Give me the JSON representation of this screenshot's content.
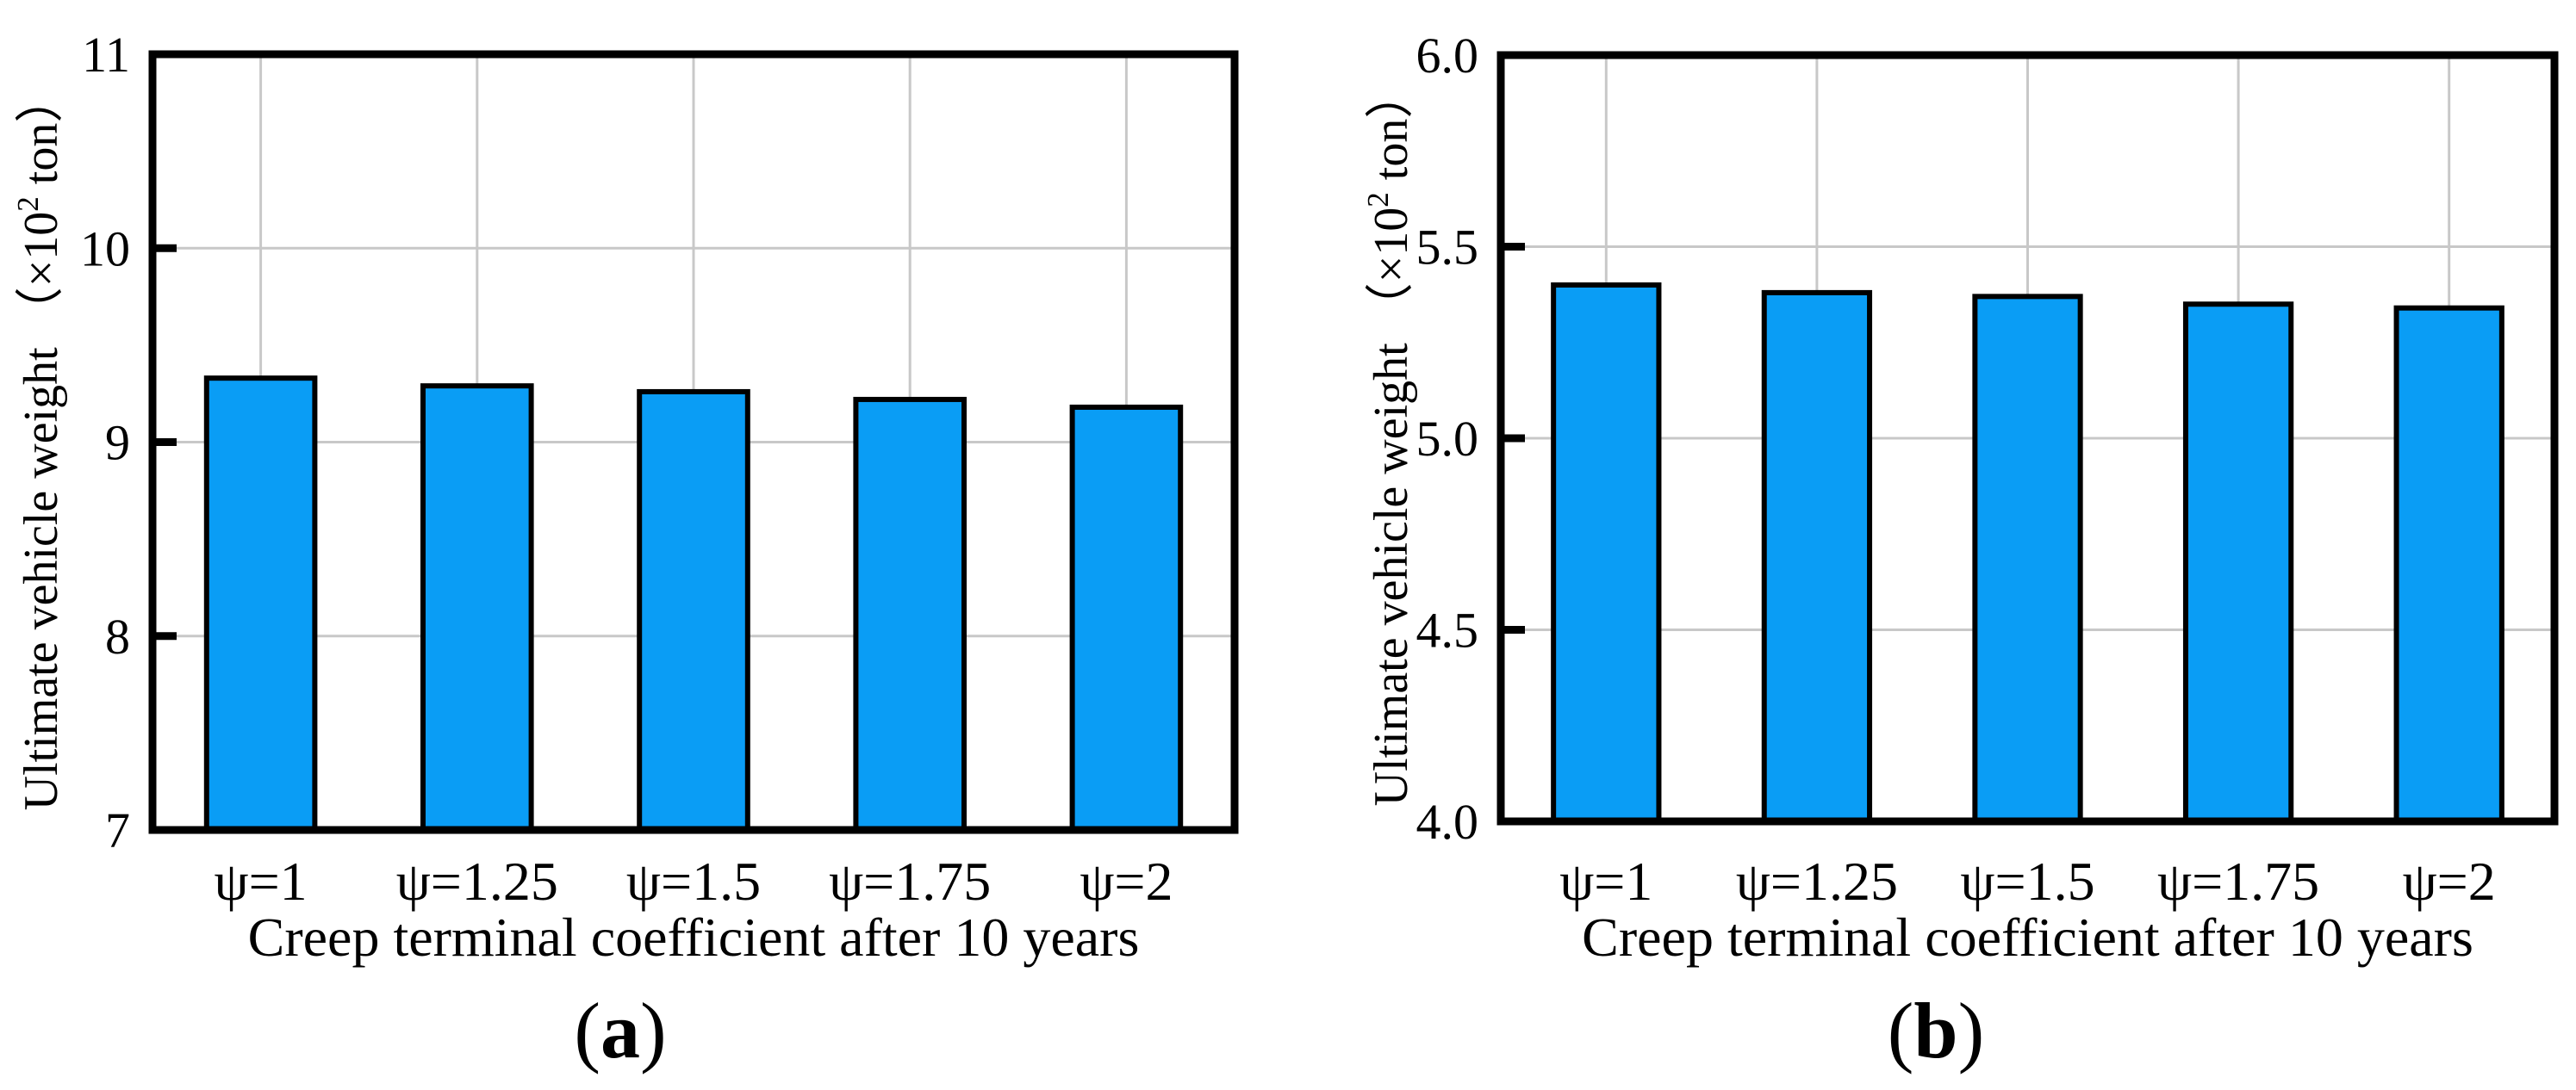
{
  "figure": {
    "kind": "two-panel scientific bar chart figure",
    "background": "#ffffff",
    "panel_labels": [
      "(a)",
      "(b)"
    ]
  },
  "chart_data": [
    {
      "type": "bar",
      "panel_label": "(a)",
      "title": "",
      "categories": [
        "ψ=1",
        "ψ=1.25",
        "ψ=1.5",
        "ψ=1.75",
        "ψ=2"
      ],
      "values": [
        9.33,
        9.29,
        9.26,
        9.22,
        9.18
      ],
      "xlabel": "Creep terminal coefficient after 10 years",
      "ylabel": "Ultimate vehicle weight （×10² ton）",
      "ylim": [
        7,
        11
      ],
      "yticks": [
        7,
        8,
        9,
        10,
        11
      ],
      "ytick_labels": [
        "7",
        "8",
        "9",
        "10",
        "11"
      ],
      "grid": true,
      "legend_position": "none",
      "bar_color": "#0A9DF5",
      "bar_edge_color": "#000000",
      "grid_color": "#C8C8C8",
      "axis_color": "#000000"
    },
    {
      "type": "bar",
      "panel_label": "(b)",
      "title": "",
      "categories": [
        "ψ=1",
        "ψ=1.25",
        "ψ=1.5",
        "ψ=1.75",
        "ψ=2"
      ],
      "values": [
        5.4,
        5.38,
        5.37,
        5.35,
        5.34
      ],
      "xlabel": "Creep terminal coefficient after 10 years",
      "ylabel": "Ultimate vehicle weight （×10² ton）",
      "ylim": [
        4.0,
        6.0
      ],
      "yticks": [
        4.0,
        4.5,
        5.0,
        5.5,
        6.0
      ],
      "ytick_labels": [
        "4.0",
        "4.5",
        "5.0",
        "5.5",
        "6.0"
      ],
      "grid": true,
      "legend_position": "none",
      "bar_color": "#0A9DF5",
      "bar_edge_color": "#000000",
      "grid_color": "#C8C8C8",
      "axis_color": "#000000"
    }
  ]
}
